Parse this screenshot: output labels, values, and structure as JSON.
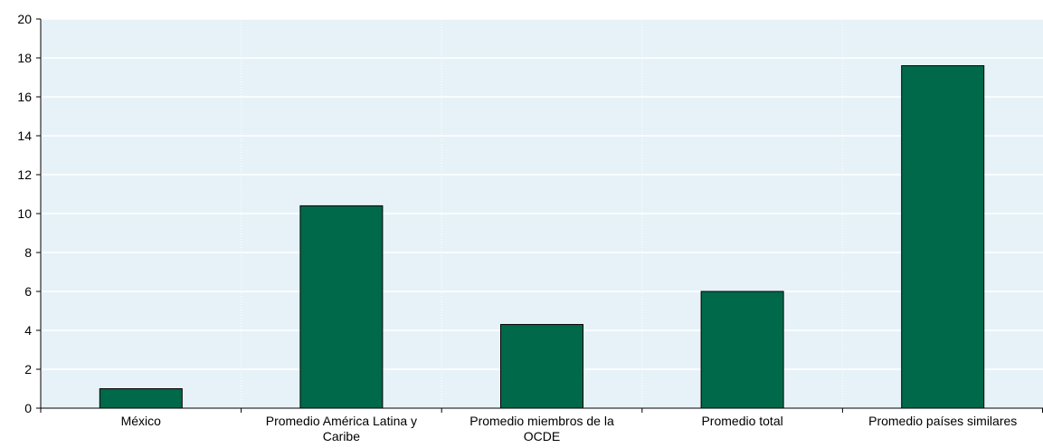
{
  "chart_data": {
    "type": "bar",
    "title": "",
    "xlabel": "",
    "ylabel": "",
    "categories": [
      "México",
      "Promedio América Latina y Caribe",
      "Promedio miembros de la OCDE",
      "Promedio total",
      "Promedio países similares"
    ],
    "category_label_lines": [
      [
        "México"
      ],
      [
        "Promedio América Latina y",
        "Caribe"
      ],
      [
        "Promedio miembros de la",
        "OCDE"
      ],
      [
        "Promedio total"
      ],
      [
        "Promedio países similares"
      ]
    ],
    "values": [
      1.0,
      10.4,
      4.3,
      6.0,
      17.6
    ],
    "ylim": [
      0,
      20
    ],
    "yticks": [
      0,
      2,
      4,
      6,
      8,
      10,
      12,
      14,
      16,
      18,
      20
    ],
    "grid": true,
    "legend": "none",
    "colors": {
      "bar": "#00694a",
      "bar_stroke": "#000000",
      "plot_background": "#e6f2f8",
      "grid": "#ffffff",
      "axis": "#000000"
    }
  }
}
